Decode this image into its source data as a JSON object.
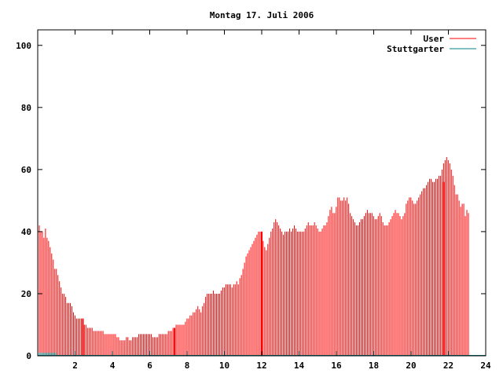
{
  "chart_data": {
    "type": "bar",
    "title": "Montag 17. Juli 2006",
    "xlabel": "",
    "ylabel": "",
    "xlim": [
      0,
      24
    ],
    "ylim": [
      0,
      105
    ],
    "x_ticks": [
      {
        "value": 2,
        "label": "2"
      },
      {
        "value": 4,
        "label": "4"
      },
      {
        "value": 6,
        "label": "6"
      },
      {
        "value": 8,
        "label": "8"
      },
      {
        "value": 10,
        "label": "10"
      },
      {
        "value": 12,
        "label": "12"
      },
      {
        "value": 14,
        "label": "14"
      },
      {
        "value": 16,
        "label": "16"
      },
      {
        "value": 18,
        "label": "18"
      },
      {
        "value": 20,
        "label": "20"
      },
      {
        "value": 22,
        "label": "22"
      },
      {
        "value": 24,
        "label": "24"
      }
    ],
    "y_ticks": [
      {
        "value": 0,
        "label": "0"
      },
      {
        "value": 20,
        "label": "20"
      },
      {
        "value": 40,
        "label": "40"
      },
      {
        "value": 60,
        "label": "60"
      },
      {
        "value": 80,
        "label": "80"
      },
      {
        "value": 100,
        "label": "100"
      }
    ],
    "grid": false,
    "legend_position": "top-right",
    "series": [
      {
        "name": "User",
        "color": "#ff0000",
        "style": "impulses",
        "x_step_hours": 0.0833,
        "values": [
          45,
          42,
          40,
          40,
          38,
          41,
          38,
          37,
          35,
          33,
          31,
          28,
          28,
          26,
          24,
          22,
          20,
          20,
          19,
          17,
          17,
          17,
          16,
          14,
          13,
          12,
          12,
          12,
          12,
          11,
          10,
          10,
          9,
          9,
          9,
          9,
          8,
          8,
          8,
          8,
          8,
          8,
          8,
          7,
          7,
          7,
          7,
          7,
          7,
          7,
          7,
          6,
          6,
          5,
          5,
          5,
          5,
          6,
          6,
          5,
          5,
          6,
          6,
          6,
          6,
          7,
          7,
          7,
          7,
          7,
          7,
          7,
          7,
          7,
          6,
          6,
          6,
          6,
          7,
          7,
          7,
          7,
          7,
          7,
          8,
          8,
          8,
          9,
          9,
          10,
          10,
          10,
          10,
          10,
          10,
          11,
          12,
          12,
          13,
          13,
          14,
          14,
          15,
          16,
          15,
          14,
          16,
          17,
          19,
          20,
          20,
          20,
          20,
          21,
          20,
          20,
          20,
          20,
          21,
          22,
          22,
          23,
          23,
          23,
          23,
          22,
          23,
          23,
          24,
          23,
          25,
          26,
          28,
          30,
          32,
          33,
          34,
          35,
          36,
          37,
          38,
          39,
          40,
          40,
          38,
          37,
          35,
          34,
          36,
          38,
          40,
          41,
          43,
          44,
          43,
          42,
          41,
          40,
          39,
          40,
          40,
          40,
          41,
          40,
          41,
          42,
          41,
          40,
          40,
          40,
          40,
          40,
          41,
          42,
          43,
          42,
          42,
          42,
          43,
          42,
          41,
          40,
          40,
          41,
          42,
          42,
          43,
          45,
          47,
          48,
          46,
          46,
          48,
          51,
          51,
          50,
          50,
          51,
          50,
          51,
          49,
          46,
          45,
          44,
          43,
          42,
          42,
          43,
          44,
          44,
          45,
          46,
          47,
          46,
          46,
          46,
          45,
          44,
          44,
          45,
          46,
          45,
          43,
          42,
          42,
          42,
          43,
          44,
          45,
          46,
          47,
          46,
          46,
          45,
          44,
          45,
          46,
          49,
          50,
          51,
          51,
          50,
          49,
          49,
          50,
          51,
          52,
          53,
          54,
          54,
          55,
          56,
          57,
          57,
          56,
          56,
          57,
          57,
          58,
          58,
          60,
          62,
          63,
          64,
          63,
          62,
          60,
          58,
          55,
          52,
          52,
          50,
          48,
          49,
          49,
          45,
          47,
          46
        ]
      },
      {
        "name": "Stuttgarter",
        "color": "#008080",
        "style": "impulses",
        "x_step_hours": 0.0833,
        "values": [
          1,
          1,
          1,
          1,
          1,
          1,
          1,
          1,
          1,
          1,
          1,
          1,
          1,
          0,
          0,
          0,
          0,
          0,
          0,
          0,
          0,
          0,
          0,
          0,
          0,
          0,
          0,
          0,
          0,
          0,
          0,
          0,
          0,
          0,
          0,
          0,
          0,
          0,
          0,
          0,
          0,
          0,
          0,
          0,
          0,
          0,
          0,
          0,
          0,
          0,
          0,
          0,
          0,
          0,
          0,
          0,
          0,
          0,
          0,
          0,
          0,
          0,
          0,
          0,
          0,
          0,
          0,
          0,
          0,
          0,
          0,
          0,
          0,
          0,
          0,
          0,
          0,
          0,
          0,
          0,
          0,
          0,
          0,
          0,
          0,
          0,
          0,
          0,
          0,
          0,
          0,
          0,
          0,
          0,
          0,
          0,
          0,
          0,
          0,
          0,
          0,
          0,
          0,
          0,
          0,
          0,
          0,
          0,
          0,
          0,
          0,
          0,
          0,
          0,
          0,
          0,
          0,
          0,
          0,
          0,
          0,
          0,
          0,
          0,
          0,
          0,
          0,
          0,
          0,
          0,
          0,
          0,
          0,
          0,
          0,
          0,
          0,
          0,
          0,
          0,
          0,
          0,
          0,
          0,
          0,
          0,
          0,
          0,
          0,
          0,
          0,
          0,
          0,
          0,
          0,
          0,
          0,
          0,
          0,
          0,
          0,
          0,
          0,
          0,
          0,
          0,
          0,
          0,
          0,
          0,
          0,
          0,
          0,
          0,
          0,
          0,
          0,
          0,
          0,
          0,
          0,
          0,
          0,
          0,
          0,
          0,
          0,
          0,
          0,
          0,
          0,
          0,
          0,
          0,
          0,
          0,
          0,
          0,
          0,
          0,
          0,
          0,
          0,
          0,
          0,
          0,
          0,
          0,
          0,
          0,
          0,
          0,
          0,
          0,
          0,
          0,
          0,
          0,
          0,
          0,
          0,
          0,
          0,
          0,
          0,
          0,
          0,
          0,
          0,
          0,
          0,
          0,
          0,
          0,
          0,
          0,
          0,
          0,
          0,
          0,
          0,
          0,
          0,
          0,
          0,
          0,
          0,
          0,
          0,
          0,
          0,
          0,
          0,
          0,
          0,
          0,
          0,
          0,
          0,
          0,
          0,
          0,
          0,
          0,
          0,
          0,
          0,
          0,
          0,
          0,
          0,
          0,
          0,
          0,
          0,
          0,
          0,
          0,
          0,
          0,
          0,
          0,
          0,
          0,
          0,
          0,
          0,
          0,
          0,
          0,
          0
        ]
      }
    ],
    "highlights": [
      {
        "x": 2.42,
        "value": 12
      },
      {
        "x": 7.33,
        "value": 9
      },
      {
        "x": 12.0,
        "value": 40
      },
      {
        "x": 21.75,
        "value": 56
      }
    ]
  }
}
